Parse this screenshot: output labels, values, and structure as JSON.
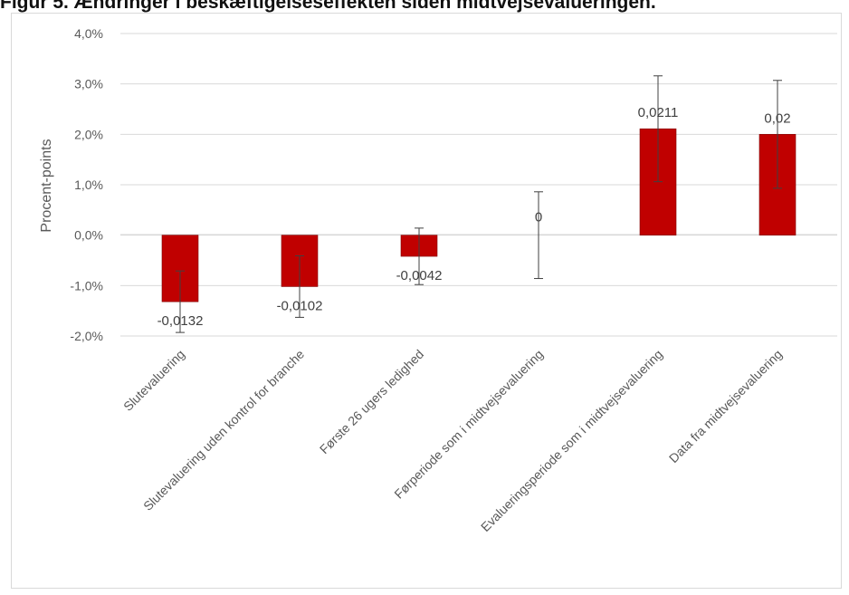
{
  "figure": {
    "title": "Figur 5. Ændringer i beskæftigelseseffekten siden midtvejsevalueringen."
  },
  "chart_data": {
    "type": "bar",
    "title": "Figur 5. Ændringer i beskæftigelseseffekten siden midtvejsevalueringen.",
    "xlabel": "",
    "ylabel": "Procent-points",
    "ylim": [
      -0.02,
      0.04
    ],
    "yticks": [
      -0.02,
      -0.01,
      0.0,
      0.01,
      0.02,
      0.03,
      0.04
    ],
    "ytick_labels": [
      "-2,0%",
      "-1,0%",
      "0,0%",
      "1,0%",
      "2,0%",
      "3,0%",
      "4,0%"
    ],
    "grid": true,
    "legend": "none",
    "bar_color": "#c00000",
    "categories": [
      "Slutevaluering",
      "Slutevaluering uden kontrol for branche",
      "Første 26 ugers ledighed",
      "Førperiode som i midtvejsevaluering",
      "Evalueringsperiode som i midtvejsevaluering",
      "Data fra midtvejsevaluering"
    ],
    "values": [
      -0.0132,
      -0.0102,
      -0.0042,
      0,
      0.0211,
      0.02
    ],
    "data_labels": [
      "-0,0132",
      "-0,0102",
      "-0,0042",
      "0",
      "0,0211",
      "0,02"
    ],
    "error_low": [
      -0.0193,
      -0.0163,
      -0.0098,
      -0.0086,
      0.0106,
      0.0093
    ],
    "error_high": [
      -0.0071,
      -0.0041,
      0.0014,
      0.0086,
      0.0316,
      0.0307
    ]
  }
}
